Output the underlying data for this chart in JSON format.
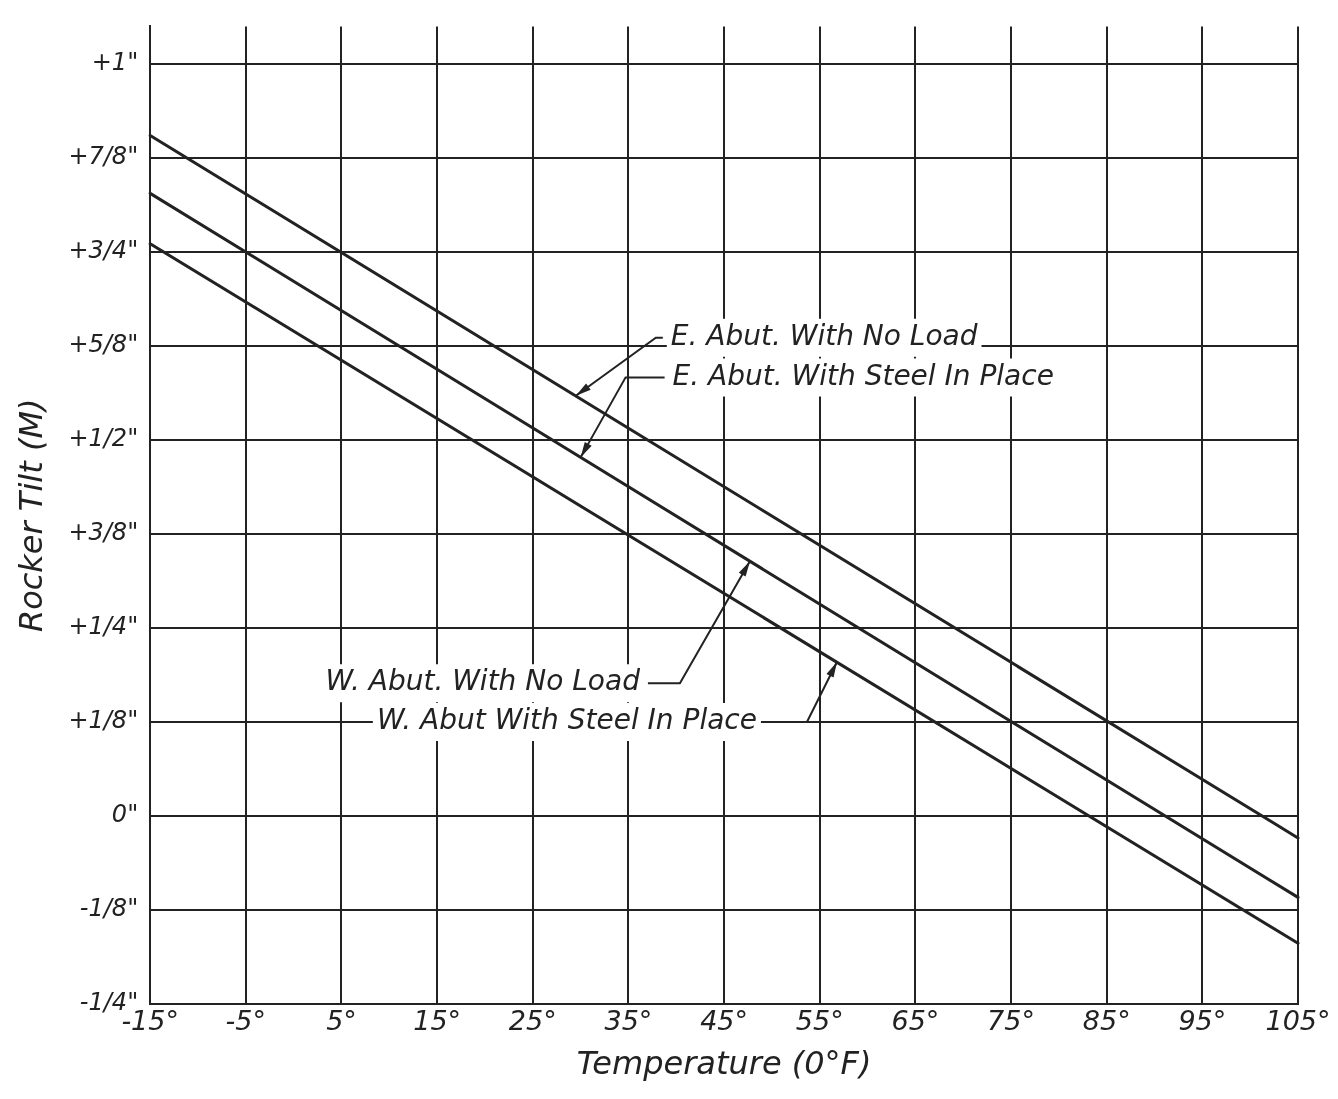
{
  "chart_data": {
    "type": "line",
    "xlabel": "Temperature (0°F)",
    "ylabel": "Rocker Tilt (M)",
    "xlim": [
      -15,
      105
    ],
    "ylim": [
      -0.25,
      1.05
    ],
    "xticks": [
      {
        "value": -15,
        "label": "-15°"
      },
      {
        "value": -5,
        "label": "-5°"
      },
      {
        "value": 5,
        "label": "5°"
      },
      {
        "value": 15,
        "label": "15°"
      },
      {
        "value": 25,
        "label": "25°"
      },
      {
        "value": 35,
        "label": "35°"
      },
      {
        "value": 45,
        "label": "45°"
      },
      {
        "value": 55,
        "label": "55°"
      },
      {
        "value": 65,
        "label": "65°"
      },
      {
        "value": 75,
        "label": "75°"
      },
      {
        "value": 85,
        "label": "85°"
      },
      {
        "value": 95,
        "label": "95°"
      },
      {
        "value": 105,
        "label": "105°"
      }
    ],
    "yticks": [
      {
        "value": -0.25,
        "label": "-1/4\""
      },
      {
        "value": -0.125,
        "label": "-1/8\""
      },
      {
        "value": 0,
        "label": "0\""
      },
      {
        "value": 0.125,
        "label": "+1/8\""
      },
      {
        "value": 0.25,
        "label": "+1/4\""
      },
      {
        "value": 0.375,
        "label": "+3/8\""
      },
      {
        "value": 0.5,
        "label": "+1/2\""
      },
      {
        "value": 0.625,
        "label": "+5/8\""
      },
      {
        "value": 0.75,
        "label": "+3/4\""
      },
      {
        "value": 0.875,
        "label": "+7/8\""
      },
      {
        "value": 1,
        "label": "+1\""
      }
    ],
    "x": [
      -15,
      105
    ],
    "series": [
      {
        "color": "#222222",
        "values": [
          0.905,
          -0.029
        ]
      },
      {
        "color": "#222222",
        "values": [
          0.828,
          -0.108
        ]
      },
      {
        "color": "#222222",
        "values": [
          0.761,
          -0.169
        ]
      }
    ],
    "annotations": [
      {
        "text": "E. Abut. With No Load",
        "x": 29.5,
        "y": 0.559
      },
      {
        "text": "E. Abut. With Steel In Place",
        "x": 30,
        "y": 0.477
      },
      {
        "text": "W. Abut. With No Load",
        "x": 47.7,
        "y": 0.339
      },
      {
        "text": "W. Abut With Steel In Place",
        "x": 56.8,
        "y": 0.205
      }
    ],
    "grid": true,
    "legend": false,
    "marker": "none",
    "line_style": "solid"
  }
}
